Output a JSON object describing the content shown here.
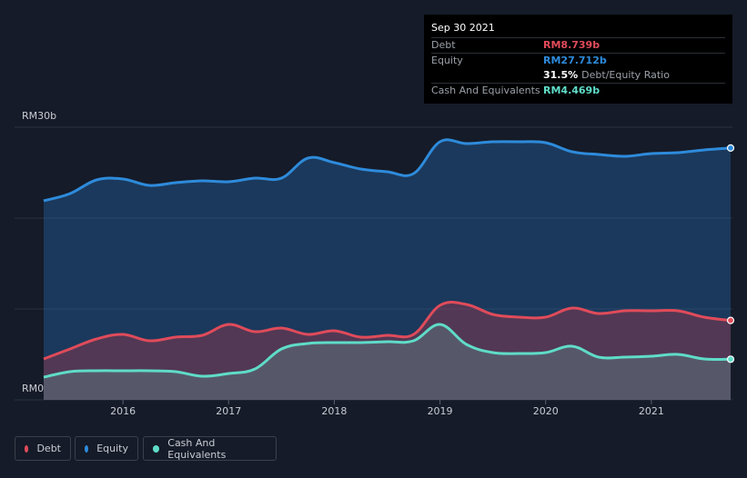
{
  "tooltip": {
    "date": "Sep 30 2021",
    "rows": [
      {
        "label": "Debt",
        "value": "RM8.739b",
        "color": "#e04b5a"
      },
      {
        "label": "Equity",
        "value": "RM27.712b",
        "color": "#2e8bdb"
      },
      {
        "label": "",
        "value": "31.5%",
        "note": "Debt/Equity Ratio",
        "color": "#ffffff"
      },
      {
        "label": "Cash And Equivalents",
        "value": "RM4.469b",
        "color": "#5fdcc8"
      }
    ]
  },
  "legend": [
    {
      "label": "Debt",
      "color": "#e04b5a"
    },
    {
      "label": "Equity",
      "color": "#2e8bdb"
    },
    {
      "label": "Cash And Equivalents",
      "color": "#5fdcc8"
    }
  ],
  "chart_data": {
    "type": "area",
    "ylim": [
      0,
      30
    ],
    "y_tick_labels": [
      "RM0",
      "RM30b"
    ],
    "x_ticks": [
      2016,
      2017,
      2018,
      2019,
      2020,
      2021
    ],
    "x_tick_labels": [
      "2016",
      "2017",
      "2018",
      "2019",
      "2020",
      "2021"
    ],
    "x_range": [
      2015.25,
      2021.75
    ],
    "grid": true,
    "legend_position": "bottom-left",
    "series": [
      {
        "name": "Equity",
        "color": "#2e8bdb",
        "x": [
          2015.25,
          2015.5,
          2015.75,
          2016.0,
          2016.25,
          2016.5,
          2016.75,
          2017.0,
          2017.25,
          2017.5,
          2017.75,
          2018.0,
          2018.25,
          2018.5,
          2018.75,
          2019.0,
          2019.25,
          2019.5,
          2019.75,
          2020.0,
          2020.25,
          2020.5,
          2020.75,
          2021.0,
          2021.25,
          2021.5,
          2021.75
        ],
        "y": [
          21.9,
          22.7,
          24.2,
          24.3,
          23.6,
          23.9,
          24.1,
          24.0,
          24.4,
          24.4,
          26.6,
          26.1,
          25.4,
          25.1,
          24.9,
          28.4,
          28.2,
          28.4,
          28.4,
          28.3,
          27.3,
          27.0,
          26.8,
          27.1,
          27.2,
          27.5,
          27.712
        ]
      },
      {
        "name": "Debt",
        "color": "#e04b5a",
        "x": [
          2015.25,
          2015.5,
          2015.75,
          2016.0,
          2016.25,
          2016.5,
          2016.75,
          2017.0,
          2017.25,
          2017.5,
          2017.75,
          2018.0,
          2018.25,
          2018.5,
          2018.75,
          2019.0,
          2019.25,
          2019.5,
          2019.75,
          2020.0,
          2020.25,
          2020.5,
          2020.75,
          2021.0,
          2021.25,
          2021.5,
          2021.75
        ],
        "y": [
          4.5,
          5.6,
          6.7,
          7.2,
          6.5,
          6.9,
          7.1,
          8.3,
          7.5,
          7.9,
          7.2,
          7.6,
          6.9,
          7.1,
          7.2,
          10.4,
          10.5,
          9.4,
          9.1,
          9.1,
          10.1,
          9.5,
          9.8,
          9.8,
          9.8,
          9.1,
          8.739
        ]
      },
      {
        "name": "Cash And Equivalents",
        "color": "#5fdcc8",
        "x": [
          2015.25,
          2015.5,
          2015.75,
          2016.0,
          2016.25,
          2016.5,
          2016.75,
          2017.0,
          2017.25,
          2017.5,
          2017.75,
          2018.0,
          2018.25,
          2018.5,
          2018.75,
          2019.0,
          2019.25,
          2019.5,
          2019.75,
          2020.0,
          2020.25,
          2020.5,
          2020.75,
          2021.0,
          2021.25,
          2021.5,
          2021.75
        ],
        "y": [
          2.5,
          3.1,
          3.2,
          3.2,
          3.2,
          3.1,
          2.6,
          2.9,
          3.4,
          5.6,
          6.2,
          6.3,
          6.3,
          6.4,
          6.5,
          8.3,
          6.1,
          5.2,
          5.1,
          5.2,
          5.9,
          4.7,
          4.7,
          4.8,
          5.0,
          4.5,
          4.469
        ]
      }
    ]
  }
}
